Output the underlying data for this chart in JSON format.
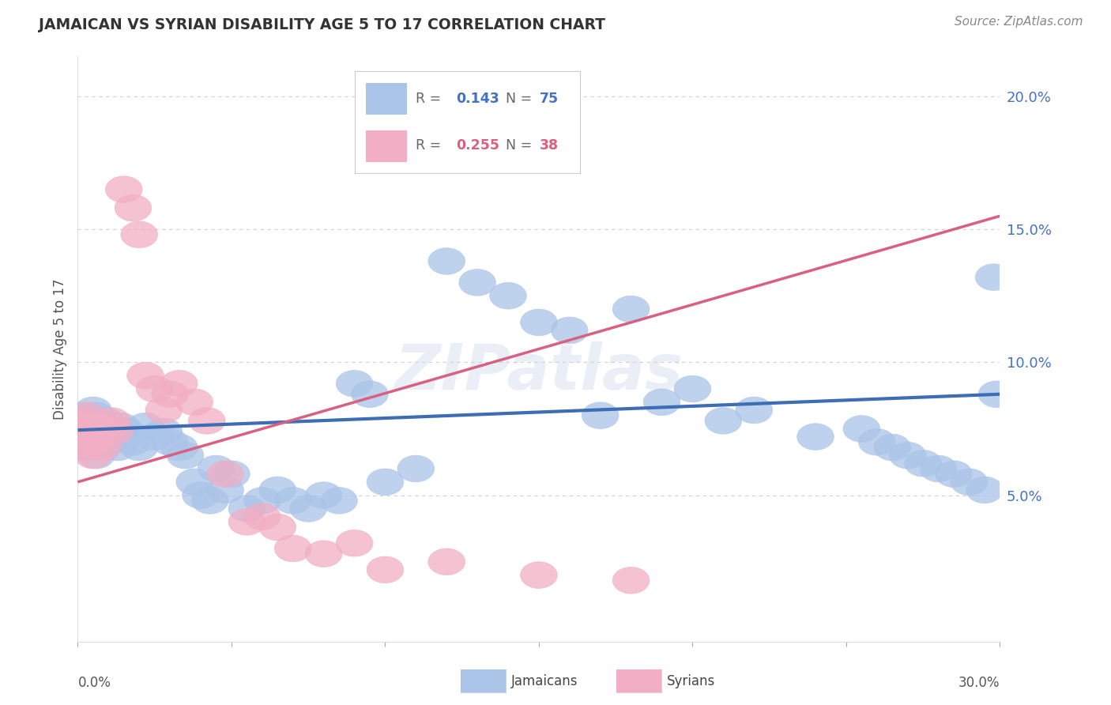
{
  "title": "JAMAICAN VS SYRIAN DISABILITY AGE 5 TO 17 CORRELATION CHART",
  "source": "Source: ZipAtlas.com",
  "ylabel": "Disability Age 5 to 17",
  "xlim": [
    0.0,
    0.3
  ],
  "ylim": [
    -0.005,
    0.215
  ],
  "ytick_vals": [
    0.05,
    0.1,
    0.15,
    0.2
  ],
  "ytick_labels": [
    "5.0%",
    "10.0%",
    "15.0%",
    "20.0%"
  ],
  "grid_color": "#cccccc",
  "background_color": "#ffffff",
  "jamaicans_color": "#aac4e8",
  "syrians_color": "#f2aec4",
  "jamaicans_line_color": "#3d6db5",
  "syrians_line_color": "#d96080",
  "R_jamaicans": 0.143,
  "N_jamaicans": 75,
  "R_syrians": 0.255,
  "N_syrians": 38,
  "watermark": "ZIPatlas",
  "label_jamaicans": "Jamaicans",
  "label_syrians": "Syrians",
  "tick_label_color": "#4472c4",
  "title_color": "#333333",
  "source_color": "#888888",
  "jamaicans_x": [
    0.001,
    0.002,
    0.002,
    0.003,
    0.003,
    0.003,
    0.004,
    0.004,
    0.005,
    0.005,
    0.006,
    0.006,
    0.006,
    0.007,
    0.007,
    0.008,
    0.008,
    0.009,
    0.009,
    0.01,
    0.01,
    0.011,
    0.012,
    0.013,
    0.014,
    0.015,
    0.016,
    0.018,
    0.02,
    0.022,
    0.025,
    0.028,
    0.03,
    0.033,
    0.035,
    0.038,
    0.04,
    0.043,
    0.045,
    0.048,
    0.05,
    0.055,
    0.06,
    0.065,
    0.07,
    0.075,
    0.08,
    0.085,
    0.09,
    0.095,
    0.1,
    0.11,
    0.12,
    0.13,
    0.14,
    0.15,
    0.16,
    0.17,
    0.18,
    0.19,
    0.2,
    0.21,
    0.22,
    0.24,
    0.255,
    0.26,
    0.265,
    0.27,
    0.275,
    0.28,
    0.285,
    0.29,
    0.295,
    0.298,
    0.299
  ],
  "jamaicans_y": [
    0.078,
    0.075,
    0.08,
    0.072,
    0.076,
    0.078,
    0.068,
    0.074,
    0.07,
    0.082,
    0.065,
    0.075,
    0.08,
    0.072,
    0.076,
    0.068,
    0.075,
    0.074,
    0.078,
    0.07,
    0.076,
    0.072,
    0.074,
    0.068,
    0.076,
    0.072,
    0.074,
    0.07,
    0.068,
    0.076,
    0.072,
    0.074,
    0.07,
    0.068,
    0.065,
    0.055,
    0.05,
    0.048,
    0.06,
    0.052,
    0.058,
    0.045,
    0.048,
    0.052,
    0.048,
    0.045,
    0.05,
    0.048,
    0.092,
    0.088,
    0.055,
    0.06,
    0.138,
    0.13,
    0.125,
    0.115,
    0.112,
    0.08,
    0.12,
    0.085,
    0.09,
    0.078,
    0.082,
    0.072,
    0.075,
    0.07,
    0.068,
    0.065,
    0.062,
    0.06,
    0.058,
    0.055,
    0.052,
    0.132,
    0.088
  ],
  "syrians_x": [
    0.001,
    0.001,
    0.002,
    0.002,
    0.003,
    0.003,
    0.004,
    0.004,
    0.005,
    0.005,
    0.006,
    0.007,
    0.008,
    0.009,
    0.01,
    0.011,
    0.012,
    0.015,
    0.018,
    0.02,
    0.022,
    0.025,
    0.028,
    0.03,
    0.033,
    0.038,
    0.042,
    0.048,
    0.055,
    0.06,
    0.065,
    0.07,
    0.08,
    0.09,
    0.1,
    0.12,
    0.15,
    0.18
  ],
  "syrians_y": [
    0.072,
    0.076,
    0.068,
    0.078,
    0.074,
    0.08,
    0.07,
    0.076,
    0.065,
    0.072,
    0.07,
    0.075,
    0.068,
    0.073,
    0.076,
    0.078,
    0.074,
    0.165,
    0.158,
    0.148,
    0.095,
    0.09,
    0.082,
    0.088,
    0.092,
    0.085,
    0.078,
    0.058,
    0.04,
    0.042,
    0.038,
    0.03,
    0.028,
    0.032,
    0.022,
    0.025,
    0.02,
    0.018
  ],
  "jamaican_line_x0": 0.0,
  "jamaican_line_y0": 0.0745,
  "jamaican_line_x1": 0.3,
  "jamaican_line_y1": 0.088,
  "syrian_line_x0": 0.0,
  "syrian_line_y0": 0.055,
  "syrian_line_x1": 0.3,
  "syrian_line_y1": 0.155
}
